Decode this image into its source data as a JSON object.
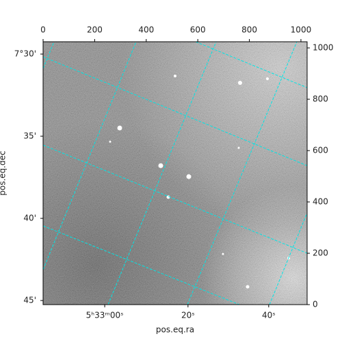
{
  "chart_data": {
    "type": "image",
    "xlabel": "pos.eq.ra",
    "ylabel": "pos.eq.dec",
    "xlim": [
      0,
      1024
    ],
    "ylim": [
      0,
      1024
    ],
    "x2ticks": [
      0,
      200,
      400,
      600,
      800,
      1000
    ],
    "y2ticks": [
      0,
      200,
      400,
      600,
      800,
      1000
    ],
    "xticks": [
      {
        "value": 239,
        "label": "5ʰ33ᵐ00ˢ"
      },
      {
        "value": 562,
        "label": "20ˢ"
      },
      {
        "value": 875,
        "label": "40ˢ"
      }
    ],
    "yticks": [
      {
        "value": 976,
        "label": "7°30'"
      },
      {
        "value": 656,
        "label": "35'"
      },
      {
        "value": 336,
        "label": "40'"
      },
      {
        "value": 16,
        "label": "45'"
      }
    ],
    "grid": true
  }
}
